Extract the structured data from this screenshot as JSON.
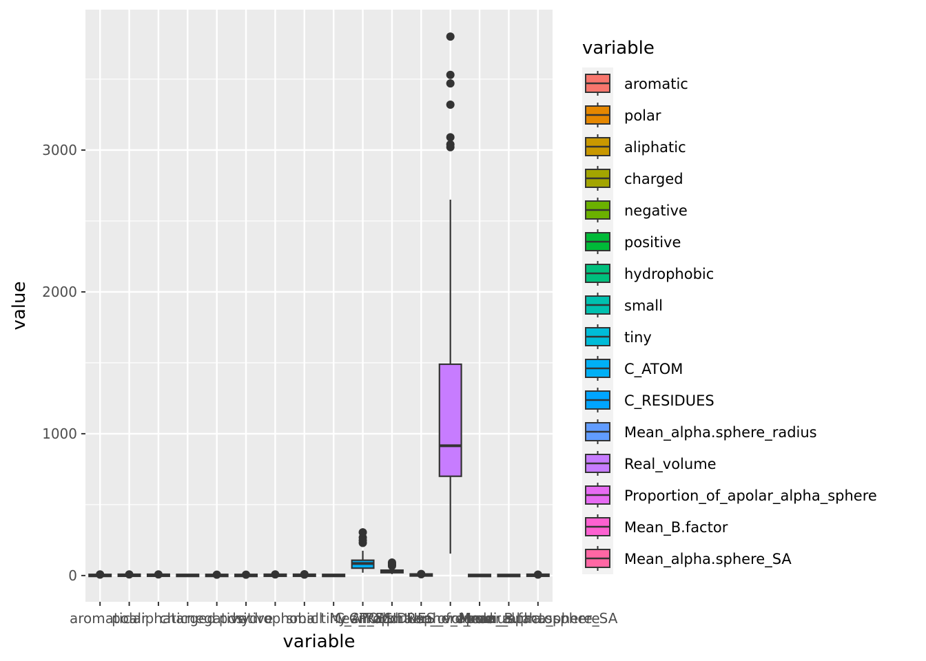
{
  "chart_data": {
    "type": "boxplot",
    "xlabel": "variable",
    "ylabel": "value",
    "ylim": [
      -185,
      3990
    ],
    "y_ticks": [
      0,
      1000,
      2000,
      3000
    ],
    "y_tick_labels": [
      "0",
      "1000",
      "2000",
      "3000"
    ],
    "legend": {
      "title": "variable",
      "position": "right"
    },
    "categories": [
      "aromatic",
      "polar",
      "aliphatic",
      "charged",
      "negative",
      "positive",
      "hydrophobic",
      "small",
      "tiny",
      "C_ATOM",
      "C_RESIDUES",
      "Mean_alpha.sphere_radius",
      "Real_volume",
      "Proportion_of_apolar_alpha_sphere",
      "Mean_B.factor",
      "Mean_alpha.sphere_SA"
    ],
    "colors": [
      "#F8766D",
      "#E58700",
      "#C99800",
      "#A3A500",
      "#6BB100",
      "#00BA38",
      "#00BF7D",
      "#00C0AF",
      "#00BCD8",
      "#00B0F6",
      "#00A5FF",
      "#619CFF",
      "#C77CFF",
      "#E76BF3",
      "#FD61D1",
      "#FF67A4"
    ],
    "boxes": [
      {
        "lower_whisker": 0,
        "q1": 0,
        "median": 1,
        "q3": 2,
        "upper_whisker": 5,
        "outliers": [
          7,
          8
        ]
      },
      {
        "lower_whisker": 0,
        "q1": 1,
        "median": 2,
        "q3": 3,
        "upper_whisker": 6,
        "outliers": [
          8
        ]
      },
      {
        "lower_whisker": 0,
        "q1": 1,
        "median": 2,
        "q3": 3,
        "upper_whisker": 6,
        "outliers": [
          8
        ]
      },
      {
        "lower_whisker": 0,
        "q1": 0,
        "median": 1,
        "q3": 2,
        "upper_whisker": 4,
        "outliers": []
      },
      {
        "lower_whisker": 0,
        "q1": 0,
        "median": 1,
        "q3": 2,
        "upper_whisker": 4,
        "outliers": [
          6
        ]
      },
      {
        "lower_whisker": 0,
        "q1": 0,
        "median": 1,
        "q3": 2,
        "upper_whisker": 4,
        "outliers": [
          6
        ]
      },
      {
        "lower_whisker": 0,
        "q1": 1,
        "median": 2,
        "q3": 3,
        "upper_whisker": 6,
        "outliers": [
          8
        ]
      },
      {
        "lower_whisker": 0,
        "q1": 1,
        "median": 2,
        "q3": 3,
        "upper_whisker": 6,
        "outliers": [
          7,
          9
        ]
      },
      {
        "lower_whisker": 0,
        "q1": 0,
        "median": 1,
        "q3": 2,
        "upper_whisker": 4,
        "outliers": []
      },
      {
        "lower_whisker": 20,
        "q1": 52,
        "median": 85,
        "q3": 108,
        "upper_whisker": 175,
        "outliers": [
          230,
          248,
          268,
          305
        ]
      },
      {
        "lower_whisker": 10,
        "q1": 20,
        "median": 27,
        "q3": 38,
        "upper_whisker": 60,
        "outliers": [
          68,
          76,
          84,
          92
        ]
      },
      {
        "lower_whisker": 2,
        "q1": 3,
        "median": 4,
        "q3": 5,
        "upper_whisker": 8,
        "outliers": [
          9,
          11
        ]
      },
      {
        "lower_whisker": 155,
        "q1": 700,
        "median": 915,
        "q3": 1490,
        "upper_whisker": 2650,
        "outliers": [
          3020,
          3040,
          3090,
          3320,
          3470,
          3530,
          3800
        ]
      },
      {
        "lower_whisker": 0,
        "q1": 0.3,
        "median": 0.5,
        "q3": 0.7,
        "upper_whisker": 1,
        "outliers": []
      },
      {
        "lower_whisker": 0,
        "q1": 0.3,
        "median": 0.5,
        "q3": 0.7,
        "upper_whisker": 1,
        "outliers": []
      },
      {
        "lower_whisker": 0,
        "q1": 1,
        "median": 2,
        "q3": 3,
        "upper_whisker": 5,
        "outliers": [
          7
        ]
      }
    ],
    "grid": true
  }
}
